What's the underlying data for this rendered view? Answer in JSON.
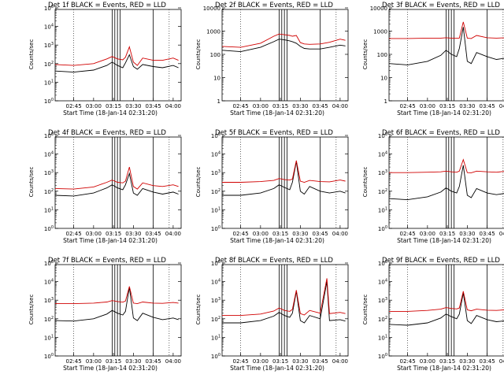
{
  "colors": {
    "events": "#000000",
    "lld": "#d00000",
    "axis": "#000000"
  },
  "common": {
    "ylabel": "Counts/sec",
    "xlabel": "Start Time (18-Jan-14 02:31:20)",
    "time_ticks": [
      "02:45",
      "03:00",
      "03:15",
      "03:30",
      "03:45",
      "04:00"
    ]
  },
  "chart_data": [
    {
      "type": "line",
      "title": "Det 1f BLACK = Events, RED = LLD",
      "yscale": "log",
      "ylim": [
        1,
        100000
      ],
      "ytick_labels": [
        "10^0",
        "10^1",
        "10^2",
        "10^3",
        "10^4",
        "10^5"
      ],
      "x": [
        "02:31",
        "02:45",
        "03:00",
        "03:10",
        "03:14",
        "03:18",
        "03:22",
        "03:24",
        "03:27",
        "03:30",
        "03:33",
        "03:37",
        "03:45",
        "03:52",
        "04:00",
        "04:04"
      ],
      "series": [
        {
          "name": "Events",
          "values": [
            40,
            35,
            45,
            80,
            120,
            80,
            60,
            110,
            300,
            70,
            50,
            90,
            70,
            60,
            80,
            60
          ]
        },
        {
          "name": "LLD",
          "values": [
            90,
            80,
            100,
            180,
            240,
            180,
            160,
            220,
            800,
            120,
            80,
            200,
            150,
            150,
            200,
            150
          ]
        }
      ],
      "vlines": [
        "03:14",
        "03:16",
        "03:18",
        "03:20"
      ]
    },
    {
      "type": "line",
      "title": "Det 2f BLACK = Events, RED = LLD",
      "yscale": "log",
      "ylim": [
        1,
        10000
      ],
      "ytick_labels": [
        "1",
        "10",
        "100",
        "1000",
        "10000"
      ],
      "x": [
        "02:31",
        "02:45",
        "03:00",
        "03:10",
        "03:14",
        "03:18",
        "03:22",
        "03:24",
        "03:27",
        "03:30",
        "03:33",
        "03:37",
        "03:45",
        "03:52",
        "04:00",
        "04:04"
      ],
      "series": [
        {
          "name": "Events",
          "values": [
            150,
            130,
            200,
            350,
            450,
            420,
            380,
            350,
            300,
            220,
            180,
            170,
            170,
            200,
            250,
            230
          ]
        },
        {
          "name": "LLD",
          "values": [
            220,
            200,
            300,
            600,
            750,
            700,
            650,
            600,
            650,
            320,
            280,
            270,
            280,
            330,
            450,
            400
          ]
        }
      ],
      "vlines": [
        "03:14",
        "03:16",
        "03:18",
        "03:20"
      ]
    },
    {
      "type": "line",
      "title": "Det 3f BLACK = Events, RED = LLD",
      "yscale": "log",
      "ylim": [
        1,
        10000
      ],
      "ytick_labels": [
        "1",
        "10",
        "100",
        "1000",
        "10000"
      ],
      "x": [
        "02:31",
        "02:45",
        "03:00",
        "03:10",
        "03:14",
        "03:18",
        "03:22",
        "03:24",
        "03:27",
        "03:30",
        "03:33",
        "03:37",
        "03:45",
        "03:52",
        "04:00",
        "04:04"
      ],
      "series": [
        {
          "name": "Events",
          "values": [
            40,
            35,
            50,
            90,
            150,
            100,
            80,
            180,
            1500,
            50,
            40,
            120,
            80,
            60,
            70,
            55
          ]
        },
        {
          "name": "LLD",
          "values": [
            480,
            480,
            500,
            500,
            520,
            500,
            500,
            500,
            2500,
            500,
            480,
            650,
            520,
            500,
            520,
            500
          ]
        }
      ],
      "vlines": [
        "03:14",
        "03:16",
        "03:18",
        "03:20"
      ]
    },
    {
      "type": "line",
      "title": "Det 4f BLACK = Events, RED = LLD",
      "yscale": "log",
      "ylim": [
        1,
        100000
      ],
      "ytick_labels": [
        "10^0",
        "10^1",
        "10^2",
        "10^3",
        "10^4",
        "10^5"
      ],
      "x": [
        "02:31",
        "02:45",
        "03:00",
        "03:10",
        "03:14",
        "03:18",
        "03:22",
        "03:24",
        "03:27",
        "03:30",
        "03:33",
        "03:37",
        "03:45",
        "03:52",
        "04:00",
        "04:04"
      ],
      "series": [
        {
          "name": "Events",
          "values": [
            60,
            55,
            80,
            150,
            220,
            150,
            120,
            220,
            900,
            80,
            60,
            140,
            90,
            70,
            90,
            70
          ]
        },
        {
          "name": "LLD",
          "values": [
            140,
            130,
            170,
            300,
            400,
            300,
            280,
            350,
            2000,
            180,
            130,
            280,
            200,
            180,
            220,
            180
          ]
        }
      ],
      "vlines": [
        "03:14",
        "03:16",
        "03:18",
        "03:20"
      ]
    },
    {
      "type": "line",
      "title": "Det 5f BLACK = Events, RED = LLD",
      "yscale": "log",
      "ylim": [
        1,
        100000
      ],
      "ytick_labels": [
        "10^0",
        "10^1",
        "10^2",
        "10^3",
        "10^4",
        "10^5"
      ],
      "x": [
        "02:31",
        "02:45",
        "03:00",
        "03:10",
        "03:14",
        "03:18",
        "03:22",
        "03:24",
        "03:27",
        "03:30",
        "03:33",
        "03:37",
        "03:45",
        "03:52",
        "04:00",
        "04:04"
      ],
      "series": [
        {
          "name": "Events",
          "values": [
            60,
            60,
            80,
            140,
            220,
            160,
            120,
            300,
            4000,
            100,
            70,
            180,
            100,
            80,
            100,
            80
          ]
        },
        {
          "name": "LLD",
          "values": [
            300,
            300,
            330,
            380,
            480,
            420,
            400,
            450,
            4500,
            350,
            300,
            380,
            330,
            320,
            400,
            350
          ]
        }
      ],
      "vlines": [
        "03:14",
        "03:16",
        "03:18",
        "03:20"
      ]
    },
    {
      "type": "line",
      "title": "Det 6f BLACK = Events, RED = LLD",
      "yscale": "log",
      "ylim": [
        1,
        100000
      ],
      "ytick_labels": [
        "10^0",
        "10^1",
        "10^2",
        "10^3",
        "10^4",
        "10^5"
      ],
      "x": [
        "02:31",
        "02:45",
        "03:00",
        "03:10",
        "03:14",
        "03:18",
        "03:22",
        "03:24",
        "03:27",
        "03:30",
        "03:33",
        "03:37",
        "03:45",
        "03:52",
        "04:00",
        "04:04"
      ],
      "series": [
        {
          "name": "Events",
          "values": [
            40,
            35,
            50,
            90,
            150,
            100,
            80,
            180,
            2500,
            60,
            45,
            140,
            80,
            65,
            80,
            60
          ]
        },
        {
          "name": "LLD",
          "values": [
            1000,
            1000,
            1050,
            1100,
            1200,
            1100,
            1050,
            1200,
            5000,
            1000,
            980,
            1200,
            1100,
            1050,
            1200,
            1100
          ]
        }
      ],
      "vlines": [
        "03:14",
        "03:16",
        "03:18",
        "03:20"
      ]
    },
    {
      "type": "line",
      "title": "Det 7f BLACK = Events, RED = LLD",
      "yscale": "log",
      "ylim": [
        1,
        100000
      ],
      "ytick_labels": [
        "10^0",
        "10^1",
        "10^2",
        "10^3",
        "10^4",
        "10^5"
      ],
      "x": [
        "02:31",
        "02:45",
        "03:00",
        "03:10",
        "03:14",
        "03:18",
        "03:22",
        "03:24",
        "03:27",
        "03:30",
        "03:33",
        "03:37",
        "03:45",
        "03:52",
        "04:00",
        "04:04"
      ],
      "series": [
        {
          "name": "Events",
          "values": [
            80,
            75,
            100,
            180,
            280,
            200,
            160,
            250,
            5000,
            110,
            80,
            200,
            120,
            90,
            110,
            90
          ]
        },
        {
          "name": "LLD",
          "values": [
            650,
            650,
            700,
            800,
            950,
            850,
            780,
            900,
            5500,
            700,
            650,
            800,
            700,
            680,
            750,
            700
          ]
        }
      ],
      "vlines": [
        "03:14",
        "03:16",
        "03:18",
        "03:20"
      ]
    },
    {
      "type": "line",
      "title": "Det 8f BLACK = Events, RED = LLD",
      "yscale": "log",
      "ylim": [
        1,
        100000
      ],
      "ytick_labels": [
        "10^0",
        "10^1",
        "10^2",
        "10^3",
        "10^4",
        "10^5"
      ],
      "x": [
        "02:31",
        "02:45",
        "03:00",
        "03:10",
        "03:14",
        "03:18",
        "03:22",
        "03:24",
        "03:27",
        "03:30",
        "03:33",
        "03:37",
        "03:45",
        "03:50",
        "03:52",
        "04:00",
        "04:04"
      ],
      "series": [
        {
          "name": "Events",
          "values": [
            60,
            60,
            80,
            140,
            220,
            150,
            120,
            200,
            3000,
            80,
            60,
            150,
            100,
            10000,
            80,
            90,
            75
          ]
        },
        {
          "name": "LLD",
          "values": [
            150,
            150,
            180,
            260,
            380,
            280,
            250,
            320,
            3500,
            190,
            160,
            280,
            200,
            15000,
            190,
            220,
            190
          ]
        }
      ],
      "vlines": [
        "03:14",
        "03:16",
        "03:18",
        "03:20"
      ]
    },
    {
      "type": "line",
      "title": "Det 9f BLACK = Events, RED = LLD",
      "yscale": "log",
      "ylim": [
        1,
        100000
      ],
      "ytick_labels": [
        "10^0",
        "10^1",
        "10^2",
        "10^3",
        "10^4",
        "10^5"
      ],
      "x": [
        "02:31",
        "02:45",
        "03:00",
        "03:10",
        "03:14",
        "03:18",
        "03:22",
        "03:24",
        "03:27",
        "03:30",
        "03:33",
        "03:37",
        "03:45",
        "03:52",
        "04:00",
        "04:04"
      ],
      "series": [
        {
          "name": "Events",
          "values": [
            50,
            45,
            60,
            110,
            180,
            130,
            100,
            180,
            2500,
            80,
            55,
            150,
            90,
            70,
            80,
            65
          ]
        },
        {
          "name": "LLD",
          "values": [
            250,
            250,
            280,
            330,
            400,
            360,
            340,
            380,
            3000,
            300,
            270,
            330,
            290,
            280,
            310,
            290
          ]
        }
      ],
      "vlines": [
        "03:14",
        "03:16",
        "03:18",
        "03:20"
      ]
    }
  ]
}
